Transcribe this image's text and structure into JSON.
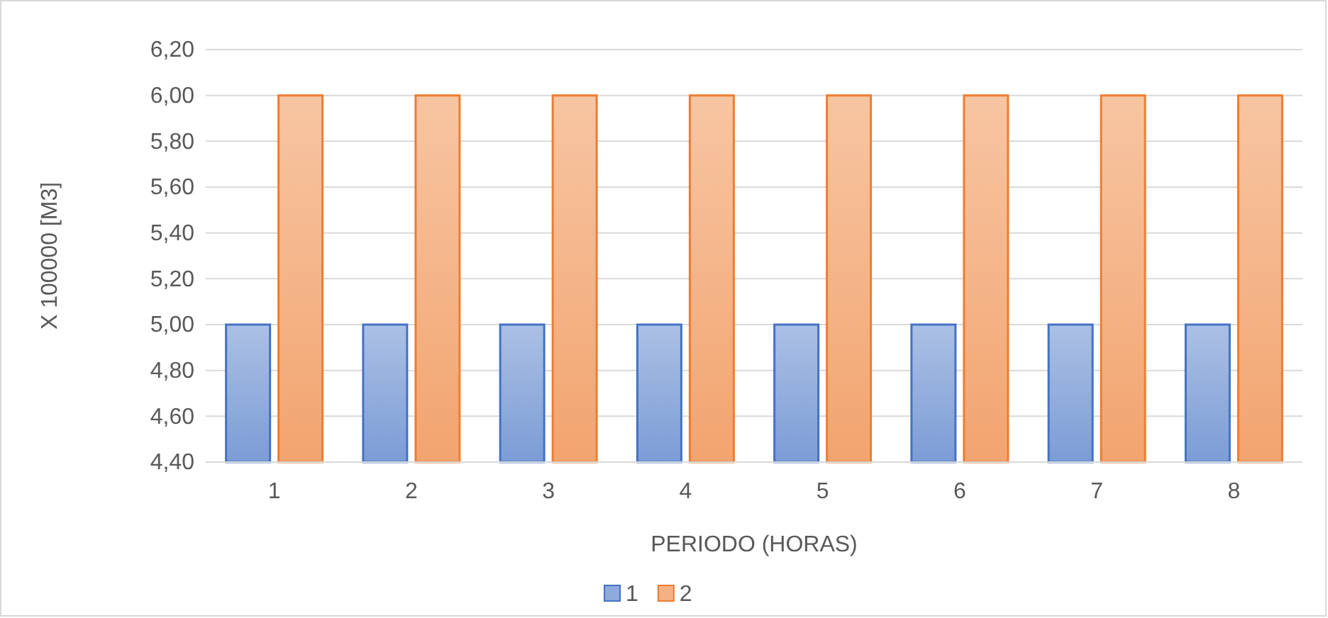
{
  "chart_data": {
    "type": "bar",
    "xlabel": "PERIODO (HORAS)",
    "ylabel": "X 100000 [M3]",
    "categories": [
      "1",
      "2",
      "3",
      "4",
      "5",
      "6",
      "7",
      "8"
    ],
    "series": [
      {
        "name": "1",
        "color": "#4472c4",
        "values": [
          5,
          5,
          5,
          5,
          5,
          5,
          5,
          5
        ]
      },
      {
        "name": "2",
        "color": "#ed7d31",
        "values": [
          6,
          6,
          6,
          6,
          6,
          6,
          6,
          6
        ]
      }
    ],
    "ylim": [
      4.4,
      6.2
    ],
    "yticks": [
      {
        "value": 4.4,
        "label": "4,40"
      },
      {
        "value": 4.6,
        "label": "4,60"
      },
      {
        "value": 4.8,
        "label": "4,80"
      },
      {
        "value": 5.0,
        "label": "5,00"
      },
      {
        "value": 5.2,
        "label": "5,20"
      },
      {
        "value": 5.4,
        "label": "5,40"
      },
      {
        "value": 5.6,
        "label": "5,60"
      },
      {
        "value": 5.8,
        "label": "5,80"
      },
      {
        "value": 6.0,
        "label": "6,00"
      },
      {
        "value": 6.2,
        "label": "6,20"
      }
    ],
    "grid": "y",
    "legend": "bottom"
  }
}
